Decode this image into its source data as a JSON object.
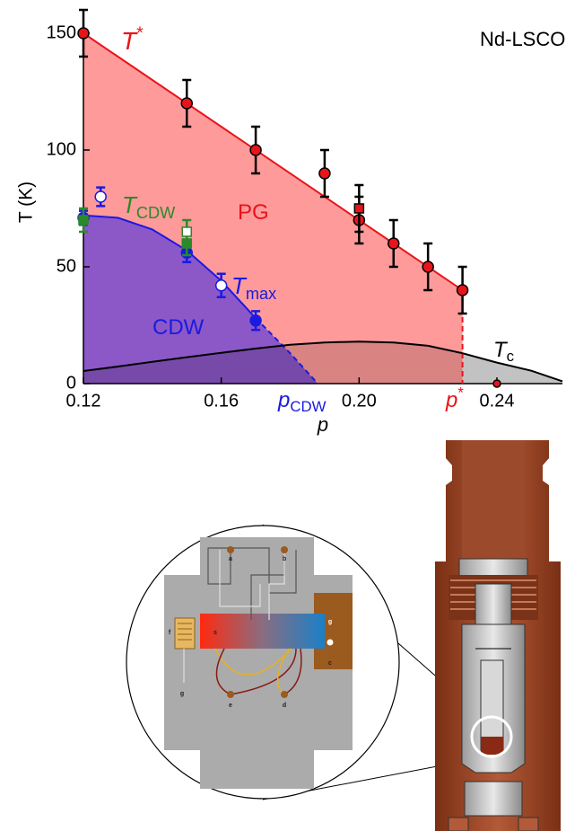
{
  "chart_data": {
    "type": "line",
    "xlabel": "p",
    "ylabel": "T (K)",
    "xlim": [
      0.12,
      0.259
    ],
    "ylim": [
      0,
      160
    ],
    "xticks": [
      0.12,
      0.16,
      {
        "value": 0.2,
        "label": "0.20"
      },
      0.24
    ],
    "yticks": [
      0,
      50,
      100,
      150
    ],
    "fills": {
      "pg": "#ff9a9a",
      "cdw": "#8c58c8",
      "tc_region": "#e4e4e4",
      "tc_shade": "#000000"
    },
    "curves": [
      {
        "color": "#e8141a",
        "dashed": false,
        "x": [
          0.12,
          0.23
        ],
        "values": [
          150,
          40
        ]
      },
      {
        "color": "#1a1ae0",
        "dashed": false,
        "x": [
          0.12,
          0.13,
          0.14,
          0.15,
          0.16,
          0.17
        ],
        "values": [
          72,
          71,
          66,
          57,
          44,
          28
        ]
      },
      {
        "color": "#1a1ae0",
        "dashed": true,
        "x": [
          0.17,
          0.18,
          0.188
        ],
        "values": [
          28,
          13,
          0
        ]
      },
      {
        "color": "#e8141a",
        "dashed": true,
        "x": [
          0.23,
          0.23
        ],
        "values": [
          40,
          0
        ]
      },
      {
        "color": "#000000",
        "dashed": false,
        "x": [
          0.12,
          0.13,
          0.14,
          0.15,
          0.16,
          0.17,
          0.18,
          0.19,
          0.2,
          0.21,
          0.22,
          0.23,
          0.24,
          0.25,
          0.259
        ],
        "values": [
          5.4,
          7.3,
          9.3,
          11.3,
          13.2,
          15,
          16.6,
          17.6,
          18,
          17.6,
          16.2,
          13,
          9,
          5.5,
          1
        ]
      }
    ],
    "points": [
      {
        "marker": "circle",
        "fill": "#e8141a",
        "edge": "#000000",
        "errcolor": "#000000",
        "x": [
          0.12,
          0.15,
          0.17,
          0.19,
          0.2,
          0.21,
          0.22,
          0.23
        ],
        "values": [
          150,
          120,
          100,
          90,
          70,
          60,
          50,
          40
        ],
        "errors": [
          10,
          10,
          10,
          10,
          10,
          10,
          10,
          10
        ]
      },
      {
        "marker": "square",
        "fill": "#e8141a",
        "edge": "#000000",
        "errcolor": "#000000",
        "x": [
          0.2
        ],
        "values": [
          75
        ],
        "errors": [
          10
        ]
      },
      {
        "marker": "dot",
        "fill": "#e8141a",
        "edge": "#000000",
        "x": [
          0.24
        ],
        "values": [
          0
        ]
      },
      {
        "marker": "circle",
        "fill": "#1a1ae0",
        "edge": "#1a1ae0",
        "errcolor": "#1a1ae0",
        "x": [
          0.12,
          0.15,
          0.17
        ],
        "values": [
          71,
          56,
          27
        ],
        "errors": [
          3,
          4,
          4
        ]
      },
      {
        "marker": "circle",
        "fill": "#ffffff",
        "edge": "#1a1ae0",
        "errcolor": "#1a1ae0",
        "x": [
          0.125,
          0.16
        ],
        "values": [
          80,
          42
        ],
        "errors": [
          4,
          5
        ]
      },
      {
        "marker": "square",
        "fill": "#2a8a2a",
        "edge": "#2a8a2a",
        "errcolor": "#2a8a2a",
        "x": [
          0.12,
          0.15
        ],
        "values": [
          70,
          60
        ],
        "errors": [
          5,
          5
        ]
      },
      {
        "marker": "square",
        "fill": "#ffffff",
        "edge": "#2a8a2a",
        "errcolor": "#2a8a2a",
        "x": [
          0.15
        ],
        "values": [
          65
        ],
        "errors": [
          5
        ]
      }
    ],
    "annotations": [
      {
        "text": "Nd-LSCO",
        "color": "#000000"
      },
      {
        "text": "T",
        "sup": "*",
        "color": "#e8141a"
      },
      {
        "text": "PG",
        "color": "#e8141a"
      },
      {
        "text": "CDW",
        "color": "#1a1ae0"
      },
      {
        "text": "T",
        "sub": "CDW",
        "color": "#2a8a2a"
      },
      {
        "text": "T",
        "sub": "max",
        "color": "#1a1ae0"
      },
      {
        "text": "p",
        "sub": "CDW",
        "color": "#1a1ae0"
      },
      {
        "text": "p",
        "sup": "*",
        "color": "#e8141a"
      },
      {
        "text": "T",
        "sub": "c",
        "color": "#000000"
      }
    ]
  },
  "diagram": {
    "labels": [
      "a",
      "b",
      "c",
      "d",
      "e",
      "f",
      "g",
      "s",
      "g"
    ]
  }
}
